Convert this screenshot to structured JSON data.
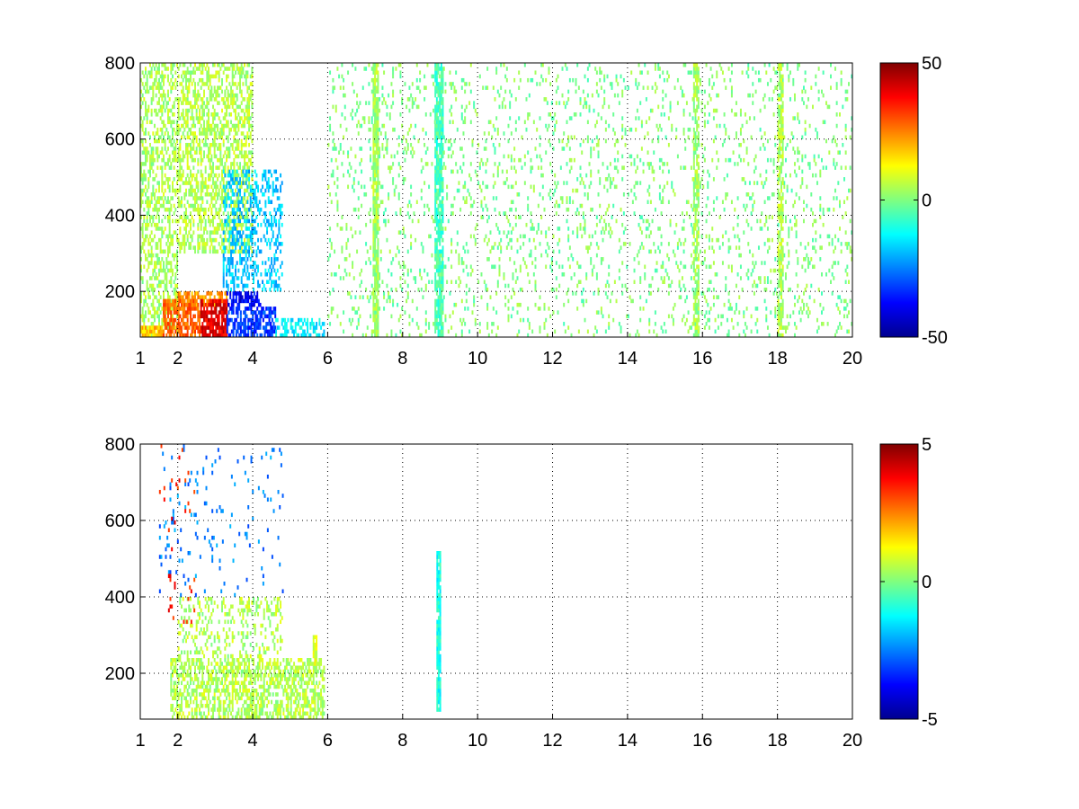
{
  "chart_data": [
    {
      "type": "heatmap",
      "title": "",
      "xlabel": "",
      "ylabel": "",
      "xlim": [
        1,
        20
      ],
      "ylim": [
        80,
        800
      ],
      "xticks": [
        1,
        2,
        4,
        6,
        8,
        10,
        12,
        14,
        16,
        18,
        20
      ],
      "yticks": [
        200,
        400,
        600,
        800
      ],
      "grid": true,
      "colormap": "jet",
      "clim": [
        -50,
        50
      ],
      "colorbar_ticks": [
        50,
        0,
        -50
      ],
      "colorbar_tick_labels": [
        "50",
        "0",
        "-50"
      ],
      "regions": [
        {
          "x": [
            1.0,
            2.0
          ],
          "y": [
            80,
            800
          ],
          "value": 4,
          "density": 0.42
        },
        {
          "x": [
            2.0,
            4.0
          ],
          "y": [
            300,
            800
          ],
          "value": 5,
          "density": 0.48
        },
        {
          "x": [
            3.2,
            4.8
          ],
          "y": [
            200,
            520
          ],
          "value": -18,
          "density": 0.35
        },
        {
          "x": [
            2.0,
            3.3
          ],
          "y": [
            160,
            200
          ],
          "value": 22,
          "density": 0.6
        },
        {
          "x": [
            3.3,
            4.2
          ],
          "y": [
            160,
            200
          ],
          "value": -38,
          "density": 0.6
        },
        {
          "x": [
            1.0,
            1.6
          ],
          "y": [
            80,
            105
          ],
          "value": 18,
          "density": 0.9
        },
        {
          "x": [
            1.6,
            2.6
          ],
          "y": [
            80,
            180
          ],
          "value": 28,
          "density": 0.7
        },
        {
          "x": [
            2.6,
            3.3
          ],
          "y": [
            80,
            180
          ],
          "value": 40,
          "density": 0.75
        },
        {
          "x": [
            3.3,
            4.6
          ],
          "y": [
            80,
            160
          ],
          "value": -32,
          "density": 0.65
        },
        {
          "x": [
            4.6,
            5.9
          ],
          "y": [
            80,
            130
          ],
          "value": -14,
          "density": 0.5
        },
        {
          "x": [
            6.0,
            20.0
          ],
          "y": [
            80,
            800
          ],
          "value": 0,
          "density": 0.1
        },
        {
          "x": [
            7.2,
            7.35
          ],
          "y": [
            80,
            800
          ],
          "value": 4,
          "density": 0.85
        },
        {
          "x": [
            8.85,
            9.05
          ],
          "y": [
            80,
            800
          ],
          "value": -6,
          "density": 0.8
        },
        {
          "x": [
            15.75,
            15.9
          ],
          "y": [
            80,
            800
          ],
          "value": 3,
          "density": 0.7
        },
        {
          "x": [
            18.0,
            18.15
          ],
          "y": [
            80,
            800
          ],
          "value": 5,
          "density": 0.7
        }
      ]
    },
    {
      "type": "heatmap",
      "title": "",
      "xlabel": "",
      "ylabel": "",
      "xlim": [
        1,
        20
      ],
      "ylim": [
        80,
        800
      ],
      "xticks": [
        1,
        2,
        4,
        6,
        8,
        10,
        12,
        14,
        16,
        18,
        20
      ],
      "yticks": [
        200,
        400,
        600,
        800
      ],
      "grid": true,
      "colormap": "jet",
      "clim": [
        -5,
        5
      ],
      "colorbar_ticks": [
        5,
        0,
        -5
      ],
      "colorbar_tick_labels": [
        "5",
        "0",
        "-5"
      ],
      "regions": [
        {
          "x": [
            1.8,
            5.9
          ],
          "y": [
            80,
            240
          ],
          "value": 0.5,
          "density": 0.55
        },
        {
          "x": [
            2.0,
            4.8
          ],
          "y": [
            240,
            400
          ],
          "value": 0.5,
          "density": 0.25
        },
        {
          "x": [
            1.5,
            4.8
          ],
          "y": [
            400,
            800
          ],
          "value": -2.5,
          "density": 0.04
        },
        {
          "x": [
            1.5,
            2.5
          ],
          "y": [
            300,
            800
          ],
          "value": 3.5,
          "density": 0.03
        },
        {
          "x": [
            8.9,
            9.0
          ],
          "y": [
            100,
            520
          ],
          "value": -1,
          "density": 0.95
        },
        {
          "x": [
            5.6,
            5.7
          ],
          "y": [
            220,
            300
          ],
          "value": 1,
          "density": 0.9
        }
      ]
    }
  ]
}
